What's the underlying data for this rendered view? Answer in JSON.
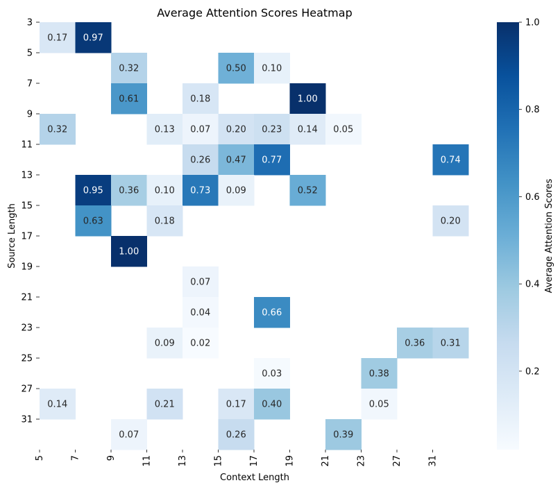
{
  "chart_data": {
    "type": "heatmap",
    "title": "Average Attention Scores Heatmap",
    "xlabel": "Context Length",
    "ylabel": "Source Length",
    "colorbar_label": "Average Attention Scores",
    "x_tick_labels": [
      "5",
      "7",
      "9",
      "11",
      "13",
      "15",
      "17",
      "19",
      "21",
      "23",
      "27",
      "31"
    ],
    "y_tick_labels": [
      "3",
      "5",
      "7",
      "9",
      "11",
      "13",
      "15",
      "17",
      "19",
      "21",
      "23",
      "25",
      "27",
      "31"
    ],
    "colorbar_ticks": [
      "0.2",
      "0.4",
      "0.6",
      "0.8",
      "1.0"
    ],
    "colorbar_range": [
      0.02,
      1.0
    ],
    "colormap": [
      "#f7fbff",
      "#deebf7",
      "#c6dbef",
      "#9ecae1",
      "#6baed6",
      "#4292c6",
      "#2171b5",
      "#08519c",
      "#08306b"
    ],
    "annotation_light_color": "#262626",
    "annotation_dark_color": "#ffffff",
    "values": [
      [
        0.17,
        0.97,
        null,
        null,
        null,
        null,
        null,
        null,
        null,
        null,
        null,
        null
      ],
      [
        null,
        null,
        0.32,
        null,
        null,
        0.5,
        0.1,
        null,
        null,
        null,
        null,
        null
      ],
      [
        null,
        null,
        0.61,
        null,
        0.18,
        null,
        null,
        1.0,
        null,
        null,
        null,
        null
      ],
      [
        0.32,
        null,
        null,
        0.13,
        0.07,
        0.2,
        0.23,
        0.14,
        0.05,
        null,
        null,
        null
      ],
      [
        null,
        null,
        null,
        null,
        0.26,
        0.47,
        0.77,
        null,
        null,
        null,
        null,
        0.74
      ],
      [
        null,
        0.95,
        0.36,
        0.1,
        0.73,
        0.09,
        null,
        0.52,
        null,
        null,
        null,
        null
      ],
      [
        null,
        0.63,
        null,
        0.18,
        null,
        null,
        null,
        null,
        null,
        null,
        null,
        0.2
      ],
      [
        null,
        null,
        1.0,
        null,
        null,
        null,
        null,
        null,
        null,
        null,
        null,
        null
      ],
      [
        null,
        null,
        null,
        null,
        0.07,
        null,
        null,
        null,
        null,
        null,
        null,
        null
      ],
      [
        null,
        null,
        null,
        null,
        0.04,
        null,
        0.66,
        null,
        null,
        null,
        null,
        null
      ],
      [
        null,
        null,
        null,
        0.09,
        0.02,
        null,
        null,
        null,
        null,
        null,
        0.36,
        0.31
      ],
      [
        null,
        null,
        null,
        null,
        null,
        null,
        0.03,
        null,
        null,
        0.38,
        null,
        null
      ],
      [
        0.14,
        null,
        null,
        0.21,
        null,
        0.17,
        0.4,
        null,
        null,
        0.05,
        null,
        null
      ],
      [
        null,
        null,
        0.07,
        null,
        null,
        0.26,
        null,
        null,
        0.39,
        null,
        null,
        null
      ]
    ]
  }
}
